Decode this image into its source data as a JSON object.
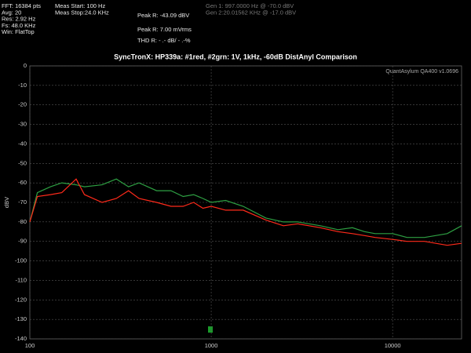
{
  "panel": {
    "col1": [
      "FFT: 16384 pts",
      "Avg: 20",
      "Res: 2.92 Hz",
      "Fs: 48.0 KHz",
      "Win: FlatTop"
    ],
    "col2": [
      "Meas Start: 100 Hz",
      "Meas Stop:24.0 KHz"
    ],
    "peak": [
      "Peak R: -43.09 dBV",
      "Peak R: 7.00 mVrms",
      "THD R: - .- dB/ - .-%"
    ],
    "gen": [
      "Gen 1: 997.0000 Hz @ -70.0  dBV",
      "Gen 2:20.01562 KHz @ -17.0  dBV"
    ]
  },
  "chart_data": {
    "type": "line",
    "title": "SyncTronX: HP339a: #1red, #2grn: 1V, 1kHz, -60dB DistAnyl  Comparison",
    "annotation": "QuantAsylum QA400 v1.0696",
    "ylabel": "dBV",
    "log_x": true,
    "grid": true,
    "xlim": [
      100,
      24000
    ],
    "xticks": [
      100,
      1000,
      10000
    ],
    "ylim": [
      -140,
      0
    ],
    "yticks": [
      0,
      -10,
      -20,
      -30,
      -40,
      -50,
      -60,
      -70,
      -80,
      -90,
      -100,
      -110,
      -120,
      -130,
      -140
    ],
    "x": [
      100,
      110,
      130,
      150,
      180,
      200,
      250,
      300,
      350,
      400,
      500,
      600,
      700,
      800,
      900,
      1000,
      1200,
      1500,
      2000,
      2500,
      3000,
      4000,
      5000,
      6000,
      7000,
      8000,
      10000,
      12000,
      15000,
      20000,
      24000
    ],
    "series": [
      {
        "color": "#2ea043",
        "values": [
          -80,
          -65,
          -62,
          -60,
          -61,
          -62,
          -61,
          -58,
          -62,
          -60,
          -64,
          -64,
          -67,
          -66,
          -68,
          -70,
          -69,
          -72,
          -78,
          -80,
          -80,
          -82,
          -84,
          -83,
          -85,
          -86,
          -86,
          -88,
          -88,
          -86,
          -82
        ]
      },
      {
        "color": "#ff2a1a",
        "values": [
          -80,
          -67,
          -66,
          -65,
          -58,
          -66,
          -70,
          -68,
          -64,
          -68,
          -70,
          -72,
          -72,
          -70,
          -73,
          -72,
          -74,
          -74,
          -79,
          -82,
          -81,
          -83,
          -85,
          -86,
          -87,
          -88,
          -89,
          -90,
          -90,
          -92,
          -91
        ]
      }
    ]
  }
}
